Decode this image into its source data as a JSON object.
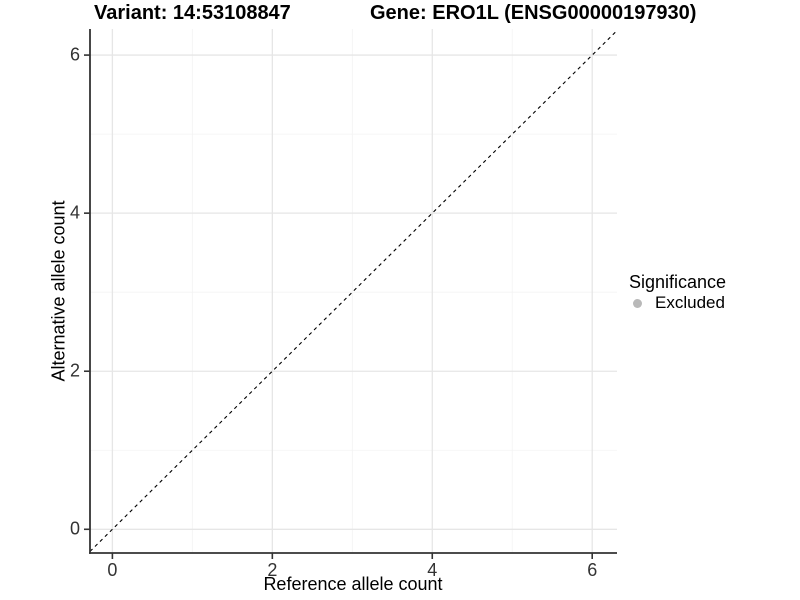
{
  "titles": {
    "variant": "Variant: 14:53108847",
    "gene": "Gene: ERO1L (ENSG00000197930)"
  },
  "chart_data": {
    "type": "scatter",
    "xlabel": "Reference allele count",
    "ylabel": "Alternative allele count",
    "x_ticks": [
      0,
      2,
      4,
      6
    ],
    "y_ticks": [
      0,
      2,
      4,
      6
    ],
    "x_minor_ticks": [
      1,
      3,
      5
    ],
    "y_minor_ticks": [
      1,
      3,
      5
    ],
    "x_range": [
      -0.28,
      6.31
    ],
    "y_range": [
      -0.3,
      6.33
    ],
    "points": [],
    "identity_line": {
      "slope": 1,
      "intercept": 0,
      "style": "dashed",
      "color": "#000000"
    },
    "legend": {
      "title": "Significance",
      "position": "right",
      "items": [
        {
          "label": "Excluded",
          "color": "#b9b9b9",
          "shape": "circle"
        }
      ]
    },
    "grid": "on",
    "colors": {
      "grid_major": "#e6e6e6",
      "grid_minor": "#f3f3f3",
      "axis_line": "#333333",
      "tick_text": "#333333"
    }
  }
}
